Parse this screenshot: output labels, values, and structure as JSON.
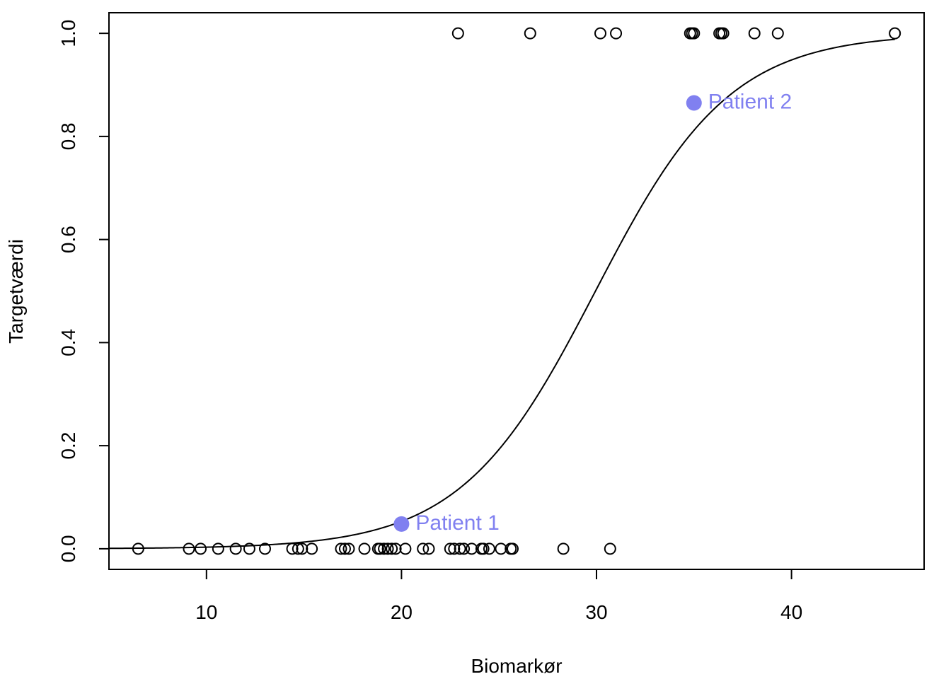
{
  "chart_data": {
    "type": "scatter",
    "title": "",
    "xlabel": "Biomarkør",
    "ylabel": "Targetværdi",
    "xlim": [
      5,
      46.8
    ],
    "ylim": [
      -0.04,
      1.04
    ],
    "xticks": [
      10,
      20,
      30,
      40
    ],
    "yticks": [
      0.0,
      0.2,
      0.4,
      0.6,
      0.8,
      1.0
    ],
    "xtick_labels": [
      "10",
      "20",
      "30",
      "40"
    ],
    "ytick_labels": [
      "0.0",
      "0.2",
      "0.4",
      "0.6",
      "0.8",
      "1.0"
    ],
    "grid": false,
    "series": [
      {
        "marker": "open-circle",
        "color": "#000000",
        "points": [
          [
            6.5,
            0
          ],
          [
            9.1,
            0
          ],
          [
            9.7,
            0
          ],
          [
            10.6,
            0
          ],
          [
            11.5,
            0
          ],
          [
            12.2,
            0
          ],
          [
            13.0,
            0
          ],
          [
            14.4,
            0
          ],
          [
            14.7,
            0
          ],
          [
            14.9,
            0
          ],
          [
            15.4,
            0
          ],
          [
            16.9,
            0
          ],
          [
            17.1,
            0
          ],
          [
            17.3,
            0
          ],
          [
            18.1,
            0
          ],
          [
            18.8,
            0
          ],
          [
            18.9,
            0
          ],
          [
            19.1,
            0
          ],
          [
            19.3,
            0
          ],
          [
            19.5,
            0
          ],
          [
            19.7,
            0
          ],
          [
            20.2,
            0
          ],
          [
            21.1,
            0
          ],
          [
            21.4,
            0
          ],
          [
            22.5,
            0
          ],
          [
            22.7,
            0
          ],
          [
            23.0,
            0
          ],
          [
            23.2,
            0
          ],
          [
            23.6,
            0
          ],
          [
            24.1,
            0
          ],
          [
            24.2,
            0
          ],
          [
            24.5,
            0
          ],
          [
            25.1,
            0
          ],
          [
            25.6,
            0
          ],
          [
            25.7,
            0
          ],
          [
            28.3,
            0
          ],
          [
            30.7,
            0
          ],
          [
            22.9,
            1
          ],
          [
            26.6,
            1
          ],
          [
            30.2,
            1
          ],
          [
            31.0,
            1
          ],
          [
            34.8,
            1
          ],
          [
            34.9,
            1
          ],
          [
            35.0,
            1
          ],
          [
            36.3,
            1
          ],
          [
            36.4,
            1
          ],
          [
            36.5,
            1
          ],
          [
            38.1,
            1
          ],
          [
            39.3,
            1
          ],
          [
            45.3,
            1
          ]
        ]
      }
    ],
    "fitted_curve": {
      "type": "logistic",
      "intercept": -8.67,
      "slope": 0.2895,
      "color": "#000000"
    },
    "annotations": [
      {
        "label": "Patient 1",
        "x": 20,
        "y": 0.048,
        "color": "#8080F0"
      },
      {
        "label": "Patient 2",
        "x": 35,
        "y": 0.865,
        "color": "#8080F0"
      }
    ]
  }
}
